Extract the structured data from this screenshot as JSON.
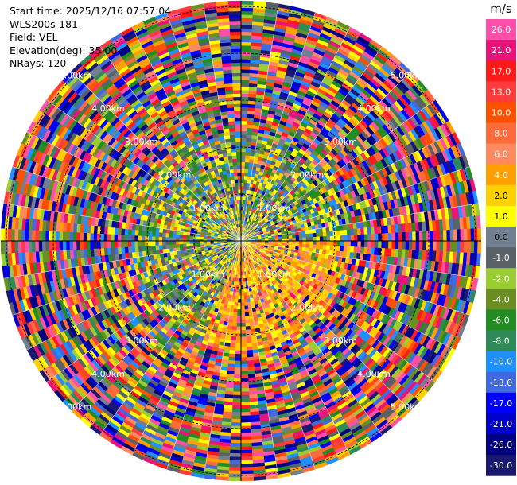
{
  "header": {
    "start_time": "Start time: 2025/12/16 07:57:04",
    "instrument": "WLS200s-181",
    "field": "Field: VEL",
    "elevation": "Elevation(deg): 35.00",
    "nrays": "NRays: 120"
  },
  "chart_data": {
    "type": "heatmap",
    "projection": "polar-ppi",
    "range_ring_labels": [
      "1.00km",
      "2.00km",
      "3.00km",
      "4.00km",
      "5.00km"
    ],
    "colorbar": {
      "unit": "m/s",
      "tick_labels": [
        "26.0",
        "21.0",
        "17.0",
        "13.0",
        "10.0",
        "8.0",
        "6.0",
        "4.0",
        "2.0",
        "1.0",
        "0.0",
        "-1.0",
        "-2.0",
        "-4.0",
        "-6.0",
        "-8.0",
        "-10.0",
        "-13.0",
        "-17.0",
        "-21.0",
        "-26.0",
        "-30.0"
      ],
      "colors": [
        "#ff4fa8",
        "#e8147a",
        "#ff1a1a",
        "#ff3b3b",
        "#ff5000",
        "#ff6a3a",
        "#ff8a60",
        "#ffa000",
        "#ffd000",
        "#ffff00",
        "#708090",
        "#5a6268",
        "#9acd32",
        "#6b8e23",
        "#228b22",
        "#2e8b57",
        "#1e90ff",
        "#4169e1",
        "#0000ff",
        "#0000cd",
        "#000080",
        "#191970"
      ]
    },
    "near_range_dominant": "yellow-orange (positive velocities, 2-8 m/s) toward south-east; green/gray mix near center",
    "far_range": "noise: random velocity values across full scale"
  }
}
